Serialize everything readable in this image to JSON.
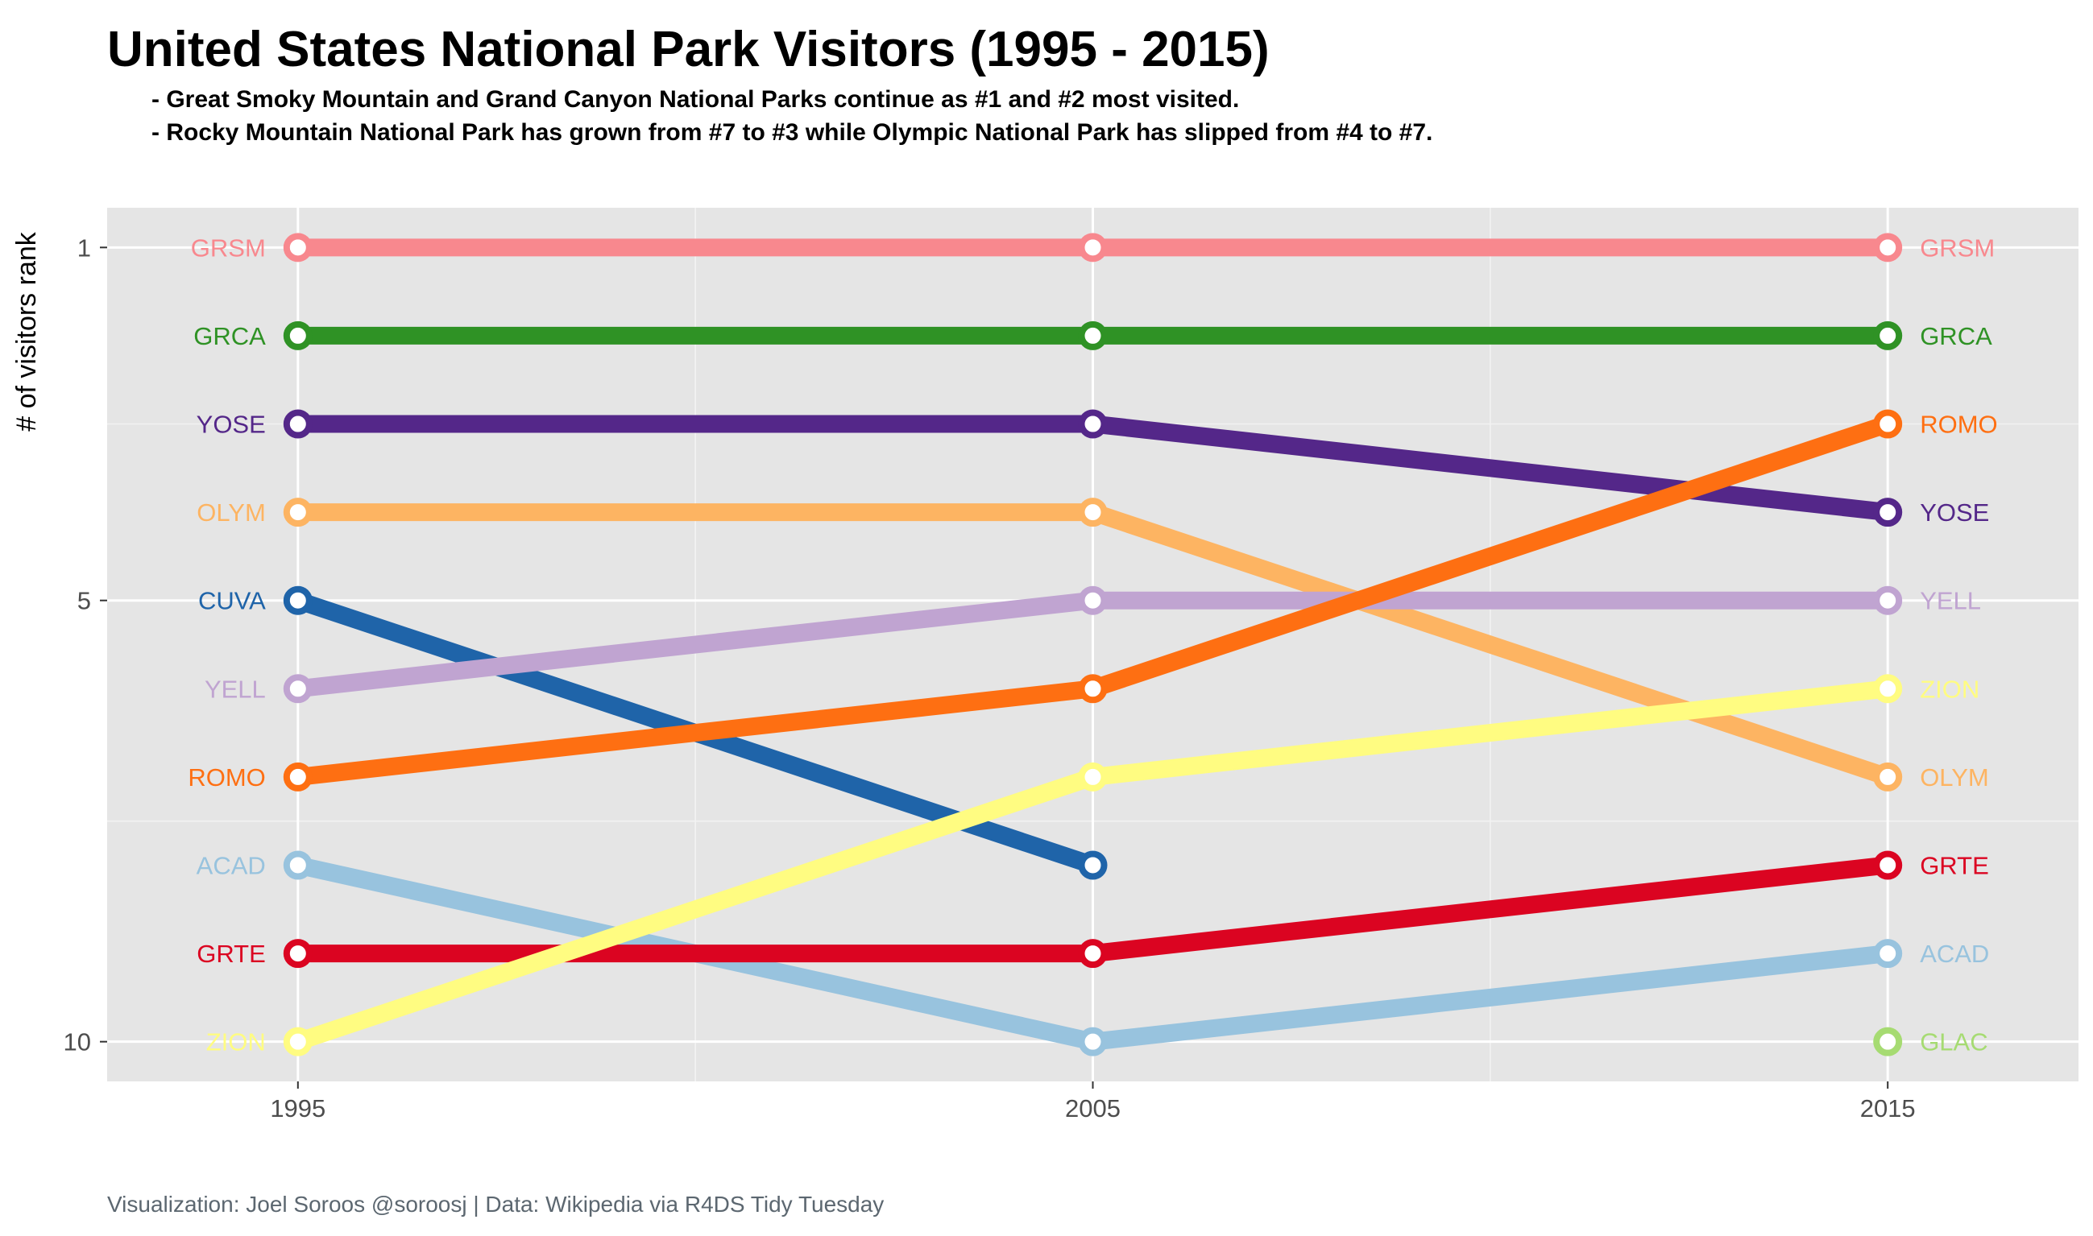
{
  "title": "United States National Park Visitors (1995 - 2015)",
  "subtitles": [
    "- Great Smoky Mountain and Grand Canyon National Parks continue as #1 and #2 most visited.",
    "- Rocky Mountain National Park has grown from #7 to #3 while Olympic National Park has slipped from #4 to #7."
  ],
  "caption": "Visualization: Joel Soroos @soroosj  |  Data: Wikipedia via R4DS Tidy Tuesday",
  "chart_data": {
    "type": "line",
    "title": "United States National Park Visitors (1995 - 2015)",
    "ylabel": "# of visitors rank",
    "xlabel": "",
    "x": [
      1995,
      2005,
      2015
    ],
    "x_ticks": [
      "1995",
      "2005",
      "2015"
    ],
    "y_ticks": [
      "1",
      "5",
      "10"
    ],
    "y_tick_values": [
      1,
      5,
      10
    ],
    "ylim": [
      10.45,
      0.55
    ],
    "xlim": [
      1992.6,
      2017.4
    ],
    "y_reversed": true,
    "grid": true,
    "legend": "none",
    "series": [
      {
        "name": "GRSM",
        "color": "#F8888E",
        "values": [
          1,
          1,
          1
        ]
      },
      {
        "name": "GRCA",
        "color": "#2F9225",
        "values": [
          2,
          2,
          2
        ]
      },
      {
        "name": "YOSE",
        "color": "#542789",
        "values": [
          3,
          3,
          4
        ]
      },
      {
        "name": "OLYM",
        "color": "#FDB462",
        "values": [
          4,
          4,
          7
        ]
      },
      {
        "name": "CUVA",
        "color": "#1F64A9",
        "values": [
          5,
          8,
          null
        ]
      },
      {
        "name": "YELL",
        "color": "#C0A4D1",
        "values": [
          6,
          5,
          5
        ]
      },
      {
        "name": "ROMO",
        "color": "#FE6F12",
        "values": [
          7,
          6,
          3
        ]
      },
      {
        "name": "ACAD",
        "color": "#98C3DE",
        "values": [
          8,
          10,
          9
        ]
      },
      {
        "name": "GRTE",
        "color": "#DB0421",
        "values": [
          9,
          9,
          8
        ]
      },
      {
        "name": "ZION",
        "color": "#FFFC81",
        "values": [
          10,
          7,
          6
        ]
      },
      {
        "name": "GLAC",
        "color": "#A6DB72",
        "values": [
          null,
          null,
          10
        ]
      }
    ]
  }
}
